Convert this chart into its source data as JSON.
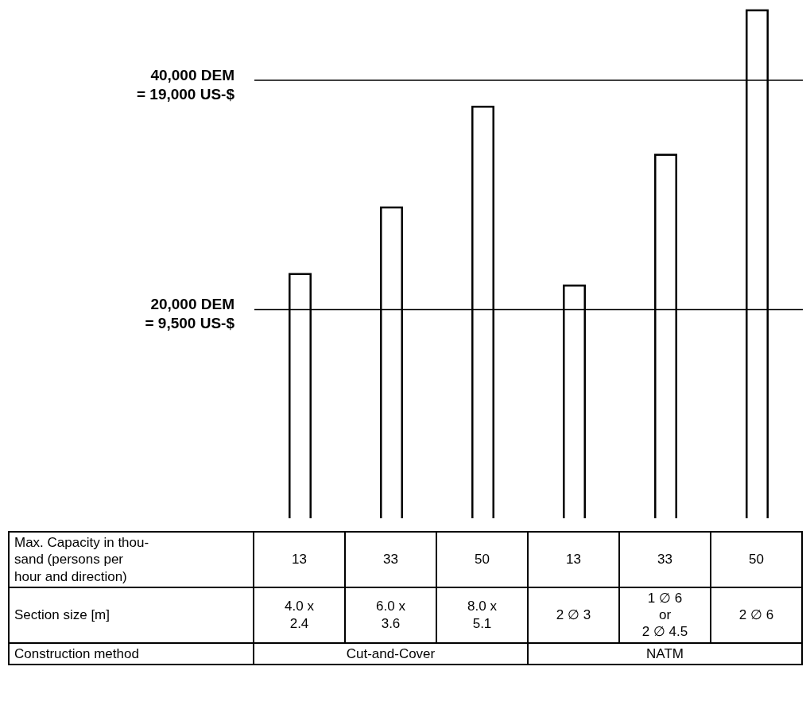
{
  "chart_data": {
    "type": "bar",
    "categories": [
      "13",
      "33",
      "50",
      "13",
      "33",
      "50"
    ],
    "values": [
      23100,
      28900,
      37700,
      22100,
      33500,
      46100
    ],
    "colors": [
      "#ffffff",
      "#ffffff",
      "#ffffff",
      "#ffffff",
      "#ffffff",
      "#ffffff"
    ],
    "ylim": [
      1800,
      47000
    ],
    "ref_lines": [
      {
        "axis": "y",
        "value": 40000,
        "label": "40,000 DEM\n= 19,000 US-$",
        "color": "#000000"
      },
      {
        "axis": "y",
        "value": 20000,
        "label": "20,000 DEM\n= 9,500 US-$",
        "color": "#000000"
      }
    ],
    "annotations": [
      "Max. Capacity in thou-\nsand (persons per\nhour and direction)",
      "Section size [m]",
      "Construction method",
      "4.0 x\n2.4",
      "6.0 x\n3.6",
      "8.0 x\n5.1",
      "2 ∅ 3",
      "1 ∅ 6\nor\n2 ∅ 4.5",
      "2 ∅ 6",
      "Cut-and-Cover",
      "NATM"
    ],
    "tick_labels": false
  }
}
